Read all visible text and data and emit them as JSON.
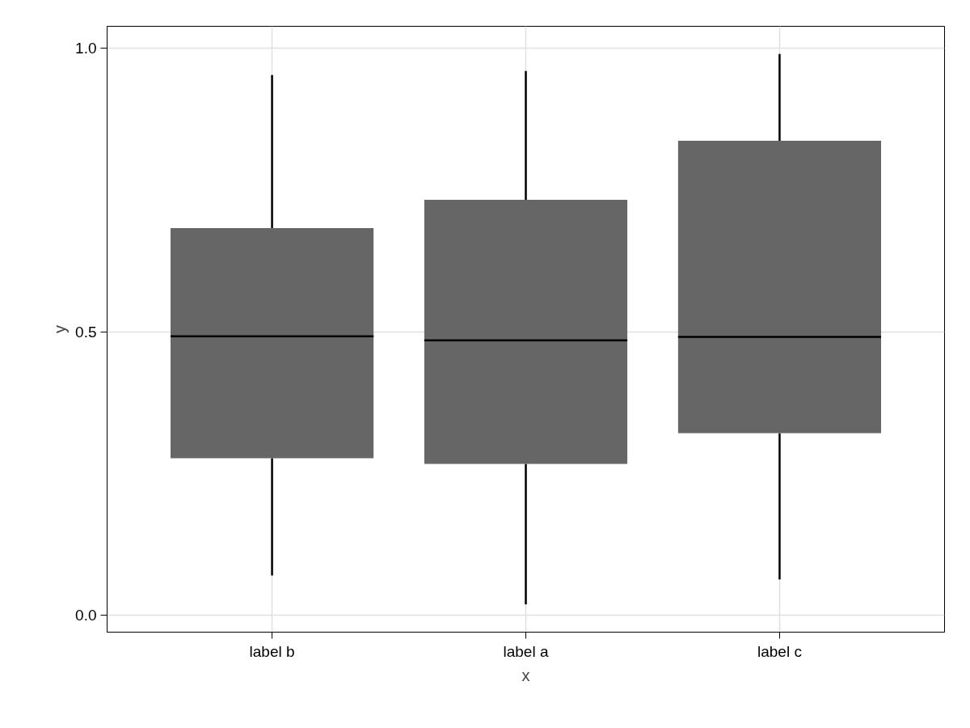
{
  "chart_data": {
    "type": "box",
    "xlabel": "x",
    "ylabel": "y",
    "categories": [
      "label b",
      "label a",
      "label c"
    ],
    "color": "#666666",
    "boxes": [
      {
        "low": 0.07,
        "q1": 0.277,
        "median": 0.492,
        "q3": 0.683,
        "high": 0.953
      },
      {
        "low": 0.019,
        "q1": 0.267,
        "median": 0.485,
        "q3": 0.733,
        "high": 0.96
      },
      {
        "low": 0.063,
        "q1": 0.321,
        "median": 0.491,
        "q3": 0.837,
        "high": 0.99
      }
    ],
    "ylim": [
      -0.03,
      1.039
    ],
    "yticks": [
      {
        "value": 0,
        "label": "0.0"
      },
      {
        "value": 0.5,
        "label": "0.5"
      },
      {
        "value": 1,
        "label": "1.0"
      }
    ],
    "grid": true
  }
}
